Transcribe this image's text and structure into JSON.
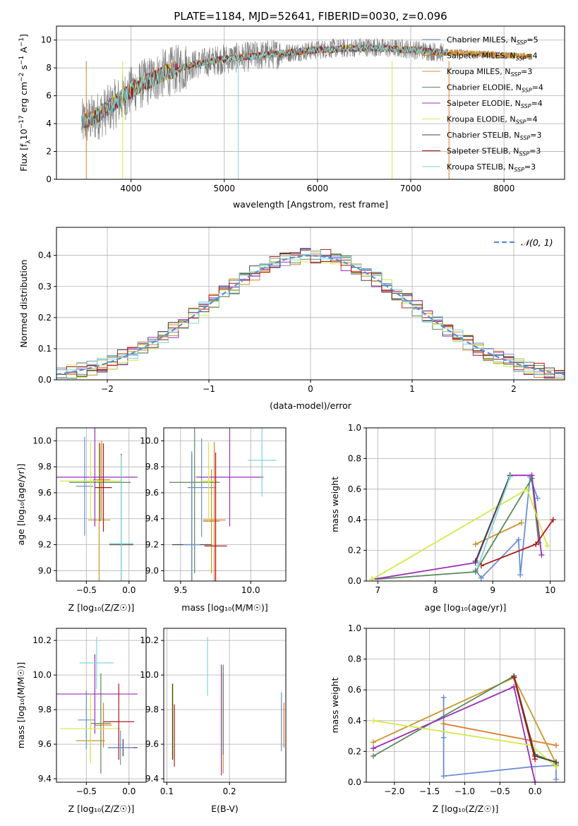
{
  "title": "PLATE=1184, MJD=52641, FIBERID=0030, z=0.096",
  "models": [
    {
      "name": "Chabrier MILES, N",
      "sub": "SSP",
      "n": "=5",
      "color": "#6b8fd6"
    },
    {
      "name": "Salpeter MILES, N",
      "sub": "SSP",
      "n": "=4",
      "color": "#e07b28"
    },
    {
      "name": "Kroupa MILES, N",
      "sub": "SSP",
      "n": "=3",
      "color": "#c8962a"
    },
    {
      "name": "Chabrier ELODIE, N",
      "sub": "SSP",
      "n": "=4",
      "color": "#5a8a5a"
    },
    {
      "name": "Salpeter ELODIE, N",
      "sub": "SSP",
      "n": "=4",
      "color": "#9a2fb8"
    },
    {
      "name": "Kroupa ELODIE, N",
      "sub": "SSP",
      "n": "=4",
      "color": "#d4e84a"
    },
    {
      "name": "Chabrier STELIB, N",
      "sub": "SSP",
      "n": "=3",
      "color": "#444444"
    },
    {
      "name": "Salpeter STELIB, N",
      "sub": "SSP",
      "n": "=3",
      "color": "#b01818"
    },
    {
      "name": "Kroupa STELIB, N",
      "sub": "SSP",
      "n": "=3",
      "color": "#7fd6d6"
    }
  ],
  "chart_data": [
    {
      "type": "line",
      "id": "spectrum",
      "xlabel": "wavelength [Angstrom, rest frame]",
      "ylabel": {
        "pre": "Flux [f",
        "sub1": "λ",
        "mid": "10",
        "sup1": "−17",
        "post": " erg cm",
        "sup2": "−2",
        "post2": " s",
        "sup3": "−1",
        "post3": " A",
        "sup4": "−1",
        "post4": "]"
      },
      "xlim": [
        3200,
        8650
      ],
      "ylim": [
        0,
        11
      ],
      "xticks": [
        4000,
        5000,
        6000,
        7000,
        8000
      ],
      "yticks": [
        0,
        2,
        4,
        6,
        8,
        10
      ],
      "data_color": "#808080",
      "data_x": [
        3470,
        3600,
        3750,
        3900,
        4050,
        4200,
        4350,
        4500,
        4650,
        4800,
        4950,
        5100,
        5250,
        5400,
        5550,
        5700,
        5850,
        6000,
        6150,
        6300,
        6450,
        6600,
        6750,
        6900,
        7050,
        7200,
        7350
      ],
      "data_y": [
        4.0,
        4.4,
        5.0,
        5.8,
        6.6,
        7.1,
        7.6,
        7.9,
        8.2,
        8.4,
        8.6,
        8.7,
        8.8,
        8.9,
        9.0,
        9.1,
        9.2,
        9.3,
        9.4,
        9.4,
        9.5,
        9.5,
        9.4,
        9.4,
        9.3,
        9.2,
        9.1
      ],
      "model_x": [
        3470,
        3600,
        3750,
        3900,
        4050,
        4200,
        4350,
        4500,
        4650,
        4800,
        4950,
        5100,
        5250,
        5400,
        5550,
        5700,
        5850,
        6000,
        6150,
        6300,
        6450,
        6600,
        6750,
        6900,
        7050,
        7200,
        7350,
        7500,
        7650,
        7800,
        7950,
        8100,
        8300
      ],
      "model_y": [
        4.1,
        4.4,
        5.1,
        5.9,
        6.6,
        7.1,
        7.6,
        7.9,
        8.2,
        8.4,
        8.6,
        8.7,
        8.8,
        8.9,
        9.0,
        9.1,
        9.2,
        9.3,
        9.3,
        9.4,
        9.4,
        9.4,
        9.4,
        9.3,
        9.3,
        9.2,
        9.1,
        9.1,
        9.0,
        9.0,
        8.9,
        8.9,
        8.8
      ]
    },
    {
      "type": "histogram",
      "id": "residuals",
      "xlabel": "(data-model)/error",
      "ylabel": "Normed distribution",
      "xlim": [
        -2.5,
        2.5
      ],
      "ylim": [
        0,
        0.49
      ],
      "xticks": [
        -2,
        -1,
        0,
        1,
        2
      ],
      "yticks": [
        0.0,
        0.1,
        0.2,
        0.3,
        0.4
      ],
      "bin_width": 0.1,
      "legend": {
        "label": "𝒩(0, 1)",
        "position": "top-right",
        "color": "#5a8fd6"
      }
    },
    {
      "type": "errorbar",
      "id": "age-vs-Z",
      "xlabel": "Z [log₁₀(Z/Z☉)]",
      "ylabel": "age  [log₁₀(age/yr)]",
      "xlim": [
        -0.85,
        0.2
      ],
      "ylim": [
        8.92,
        10.1
      ],
      "xticks": [
        -0.5,
        0.0
      ],
      "xticklabels": [
        "−0.5",
        "0.0"
      ],
      "yticks": [
        9.0,
        9.2,
        9.4,
        9.6,
        9.8,
        10.0
      ],
      "points": [
        {
          "x": -0.52,
          "y": 9.65,
          "xerr": 0.1,
          "yerr": 0.38
        },
        {
          "x": -0.32,
          "y": 9.7,
          "xerr": 0.1,
          "yerr": 0.3
        },
        {
          "x": -0.35,
          "y": 9.39,
          "xerr": 0.13,
          "yerr": 0.6
        },
        {
          "x": -0.34,
          "y": 9.68,
          "xerr": 0.36,
          "yerr": 0.3
        },
        {
          "x": -0.4,
          "y": 9.72,
          "xerr": 0.5,
          "yerr": 0.38
        },
        {
          "x": -0.45,
          "y": 9.69,
          "xerr": 0.36,
          "yerr": 0.3
        },
        {
          "x": -0.09,
          "y": 9.2,
          "xerr": 0.14,
          "yerr": 0.7
        },
        {
          "x": -0.3,
          "y": 9.64,
          "xerr": 0.1,
          "yerr": 0.34
        },
        {
          "x": -0.09,
          "y": 9.21,
          "xerr": 0.14,
          "yerr": 0.68
        }
      ]
    },
    {
      "type": "errorbar",
      "id": "age-vs-mass",
      "xlabel": "mass [log₁₀(M/M☉)]",
      "ylabel": "",
      "xlim": [
        9.38,
        10.25
      ],
      "ylim": [
        8.92,
        10.1
      ],
      "xticks": [
        9.5,
        10.0
      ],
      "xticklabels": [
        "9.5",
        "10.0"
      ],
      "yticks": [
        9.0,
        9.2,
        9.4,
        9.6,
        9.8,
        10.0
      ],
      "points": [
        {
          "x": 9.65,
          "y": 9.64,
          "xerr": 0.1,
          "yerr": 0.38
        },
        {
          "x": 9.74,
          "y": 9.39,
          "xerr": 0.08,
          "yerr": 0.6
        },
        {
          "x": 9.72,
          "y": 9.38,
          "xerr": 0.06,
          "yerr": 0.4
        },
        {
          "x": 9.6,
          "y": 9.68,
          "xerr": 0.18,
          "yerr": 0.7
        },
        {
          "x": 9.85,
          "y": 9.72,
          "xerr": 0.24,
          "yerr": 0.38
        },
        {
          "x": 9.7,
          "y": 9.69,
          "xerr": 0.06,
          "yerr": 0.3
        },
        {
          "x": 9.58,
          "y": 9.2,
          "xerr": 0.14,
          "yerr": 0.7
        },
        {
          "x": 9.75,
          "y": 9.19,
          "xerr": 0.08,
          "yerr": 0.72
        },
        {
          "x": 10.08,
          "y": 9.85,
          "xerr": 0.1,
          "yerr": 0.28
        },
        {
          "x": 9.58,
          "y": 9.2,
          "xerr": 0.06,
          "yerr": 0.72
        }
      ]
    },
    {
      "type": "line",
      "id": "massweight-vs-age",
      "xlabel": "age  [log₁₀(age/yr)]",
      "ylabel": "mass weight",
      "xlim": [
        6.8,
        10.25
      ],
      "ylim": [
        0,
        1
      ],
      "xticks": [
        7,
        8,
        9,
        10
      ],
      "yticks": [
        0.0,
        0.2,
        0.4,
        0.6,
        0.8,
        1.0
      ],
      "series": [
        {
          "x": [
            8.7,
            8.8,
            9.45,
            9.48,
            9.65,
            9.78
          ],
          "y": [
            0.07,
            0.02,
            0.27,
            0.04,
            0.68,
            0.54
          ]
        },
        {
          "x": 8.7,
          "y": 0.24
        },
        {
          "x": [
            8.7,
            9.5
          ],
          "y": [
            0.24,
            0.38
          ]
        },
        {
          "x": [
            6.9,
            8.7,
            9.68,
            9.8
          ],
          "y": [
            0.01,
            0.06,
            0.67,
            0.25
          ]
        },
        {
          "x": [
            6.9,
            8.7,
            9.3,
            9.68,
            9.85
          ],
          "y": [
            0.01,
            0.12,
            0.69,
            0.69,
            0.17
          ]
        },
        {
          "x": [
            6.9,
            9.6,
            9.95
          ],
          "y": [
            0.01,
            0.6,
            0.23
          ]
        },
        {
          "x": [
            8.7,
            9.3
          ],
          "y": [
            0.13,
            0.69
          ]
        },
        {
          "x": [
            8.8,
            9.75,
            10.05
          ],
          "y": [
            0.1,
            0.24,
            0.4
          ]
        },
        {
          "x": [
            8.75,
            9.3
          ],
          "y": [
            0.1,
            0.68
          ]
        }
      ]
    },
    {
      "type": "errorbar",
      "id": "mass-vs-Z",
      "xlabel": "Z [log₁₀(Z/Z☉)]",
      "ylabel": "mass [log₁₀(M/M☉)]",
      "xlim": [
        -0.85,
        0.2
      ],
      "ylim": [
        9.38,
        10.27
      ],
      "xticks": [
        -0.5,
        0.0
      ],
      "xticklabels": [
        "−0.5",
        "0.0"
      ],
      "yticks": [
        9.4,
        9.6,
        9.8,
        10.0,
        10.2
      ],
      "points": [
        {
          "x": -0.5,
          "y": 9.74,
          "xerr": 0.1,
          "yerr": 0.17
        },
        {
          "x": -0.3,
          "y": 9.71,
          "xerr": 0.1,
          "yerr": 0.13
        },
        {
          "x": -0.45,
          "y": 9.62,
          "xerr": 0.17,
          "yerr": 0.1
        },
        {
          "x": -0.33,
          "y": 9.72,
          "xerr": 0.12,
          "yerr": 0.29
        },
        {
          "x": -0.4,
          "y": 9.89,
          "xerr": 0.5,
          "yerr": 0.23
        },
        {
          "x": -0.45,
          "y": 9.69,
          "xerr": 0.36,
          "yerr": 0.2
        },
        {
          "x": -0.07,
          "y": 9.58,
          "xerr": 0.17,
          "yerr": 0.05
        },
        {
          "x": -0.12,
          "y": 9.73,
          "xerr": 0.18,
          "yerr": 0.22
        },
        {
          "x": -0.38,
          "y": 10.07,
          "xerr": 0.2,
          "yerr": 0.15
        },
        {
          "x": -0.1,
          "y": 9.58,
          "xerr": 0.15,
          "yerr": 0.1
        }
      ]
    },
    {
      "type": "errorbar",
      "id": "mass-vs-EBV",
      "xlabel": "E(B-V)",
      "ylabel": "",
      "xlim": [
        0.095,
        0.29
      ],
      "ylim": [
        9.38,
        10.27
      ],
      "xticks": [
        0.1,
        0.2
      ],
      "xticklabels": [
        "0.1",
        "0.2"
      ],
      "yticks": [
        9.4,
        9.6,
        9.8,
        10.0,
        10.2
      ],
      "points": [
        {
          "x": 0.283,
          "y": 9.73,
          "yerr": 0.17
        },
        {
          "x": 0.287,
          "y": 9.71,
          "yerr": 0.13
        },
        {
          "x": 0.19,
          "y": 9.72,
          "yerr": 0.29
        },
        {
          "x": 0.19,
          "y": 9.8,
          "yerr": 0.26
        },
        {
          "x": 0.187,
          "y": 9.74,
          "yerr": 0.32
        },
        {
          "x": 0.11,
          "y": 9.73,
          "yerr": 0.22
        },
        {
          "x": 0.109,
          "y": 9.73,
          "yerr": 0.22
        },
        {
          "x": 0.112,
          "y": 9.65,
          "yerr": 0.18
        },
        {
          "x": 0.165,
          "y": 10.05,
          "yerr": 0.17
        }
      ]
    },
    {
      "type": "line",
      "id": "massweight-vs-Z",
      "xlabel": "Z [log₁₀(Z/Z☉)]",
      "ylabel": "mass weight",
      "xlim": [
        -2.4,
        0.42
      ],
      "ylim": [
        0,
        1
      ],
      "xticks": [
        -2.0,
        -1.5,
        -1.0,
        -0.5,
        0.0
      ],
      "xticklabels": [
        "−2.0",
        "−1.5",
        "−1.0",
        "−0.5",
        "0.0"
      ],
      "yticks": [
        0.0,
        0.2,
        0.4,
        0.6,
        0.8,
        1.0
      ],
      "series": [
        {
          "x": [
            -1.3,
            -1.3,
            -1.3,
            -0.05,
            0.3,
            0.3
          ],
          "y": [
            0.55,
            0.29,
            0.04,
            0.1,
            0.11,
            0.02
          ]
        },
        {
          "x": [
            -1.3,
            -0.05,
            0.3
          ],
          "y": [
            0.38,
            0.27,
            0.24
          ]
        },
        {
          "x": [
            -2.3,
            -0.3,
            0.3
          ],
          "y": [
            0.26,
            0.68,
            0.12
          ]
        },
        {
          "x": [
            -2.3,
            -0.3,
            0.0,
            0.3
          ],
          "y": [
            0.17,
            0.69,
            0.18,
            0.13
          ]
        },
        {
          "x": [
            -2.3,
            -0.3,
            0.0
          ],
          "y": [
            0.22,
            0.62,
            0.0
          ]
        },
        {
          "x": [
            -2.3,
            -0.05,
            0.3
          ],
          "y": [
            0.4,
            0.24,
            0.1
          ]
        },
        {
          "x": [
            -0.3,
            0.0,
            0.3
          ],
          "y": [
            0.69,
            0.17,
            0.13
          ]
        },
        {
          "x": [
            -0.3,
            0.0
          ],
          "y": [
            0.68,
            0.15
          ]
        }
      ]
    }
  ]
}
